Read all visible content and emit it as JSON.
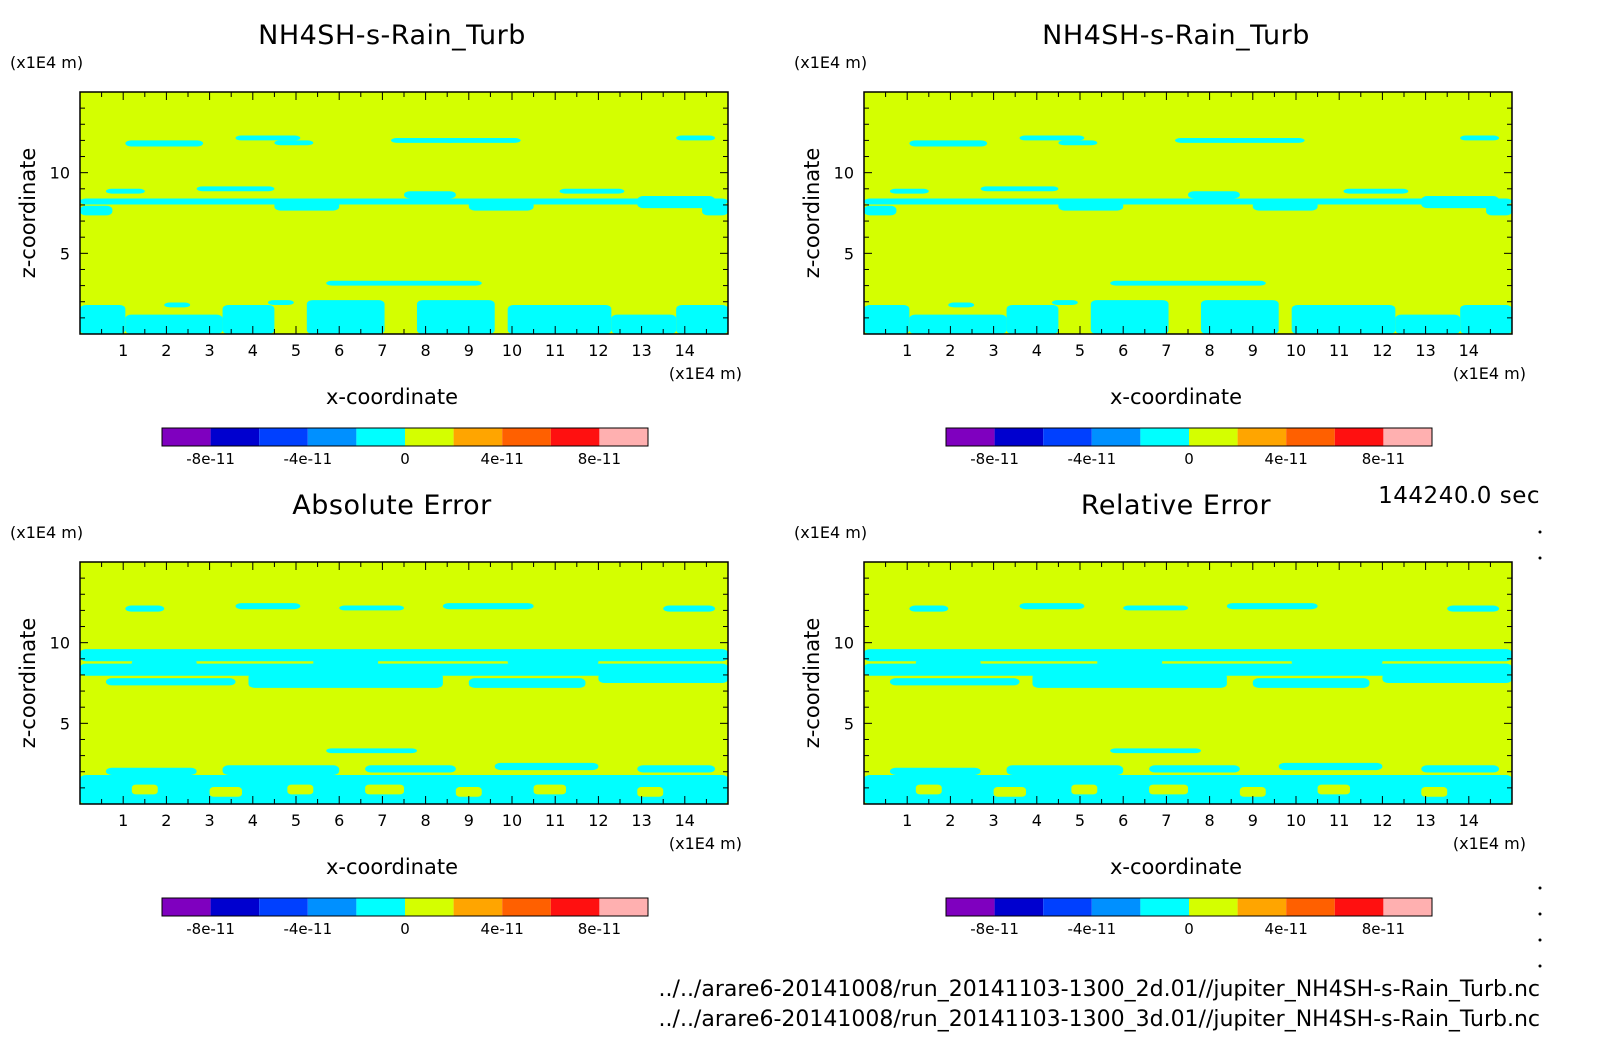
{
  "time_label": "144240.0 sec",
  "file_paths": [
    "../../arare6-20141008/run_20141103-1300_2d.01//jupiter_NH4SH-s-Rain_Turb.nc",
    "../../arare6-20141008/run_20141103-1300_3d.01//jupiter_NH4SH-s-Rain_Turb.nc"
  ],
  "colors": {
    "background_level": "#d4ff00",
    "contour_level": "#00ffff"
  },
  "colorbar": {
    "colors": [
      "#7f00bf",
      "#0000cf",
      "#0040ff",
      "#0090ff",
      "#00ffff",
      "#d4ff00",
      "#ffa500",
      "#ff6000",
      "#ff1010",
      "#ffb0b0"
    ],
    "tick_labels": [
      "-8e-11",
      "-4e-11",
      "0",
      "4e-11",
      "8e-11"
    ]
  },
  "chart_data": [
    {
      "type": "heatmap",
      "title": "NH4SH-s-Rain_Turb",
      "xlabel": "x-coordinate",
      "ylabel": "z-coordinate",
      "x_unit": "(x1E4 m)",
      "y_unit": "(x1E4 m)",
      "xlim": [
        0,
        15
      ],
      "ylim": [
        0,
        15
      ],
      "x_ticks": [
        "1",
        "2",
        "3",
        "4",
        "5",
        "6",
        "7",
        "8",
        "9",
        "10",
        "11",
        "12",
        "13",
        "14"
      ],
      "y_ticks": [
        "5",
        "10"
      ],
      "colorbar_range": [
        -1e-10,
        1e-10
      ]
    },
    {
      "type": "heatmap",
      "title": "NH4SH-s-Rain_Turb",
      "xlabel": "x-coordinate",
      "ylabel": "z-coordinate",
      "x_unit": "(x1E4 m)",
      "y_unit": "(x1E4 m)",
      "xlim": [
        0,
        15
      ],
      "ylim": [
        0,
        15
      ],
      "x_ticks": [
        "1",
        "2",
        "3",
        "4",
        "5",
        "6",
        "7",
        "8",
        "9",
        "10",
        "11",
        "12",
        "13",
        "14"
      ],
      "y_ticks": [
        "5",
        "10"
      ],
      "colorbar_range": [
        -1e-10,
        1e-10
      ]
    },
    {
      "type": "heatmap",
      "title": "Absolute Error",
      "xlabel": "x-coordinate",
      "ylabel": "z-coordinate",
      "x_unit": "(x1E4 m)",
      "y_unit": "(x1E4 m)",
      "xlim": [
        0,
        15
      ],
      "ylim": [
        0,
        15
      ],
      "x_ticks": [
        "1",
        "2",
        "3",
        "4",
        "5",
        "6",
        "7",
        "8",
        "9",
        "10",
        "11",
        "12",
        "13",
        "14"
      ],
      "y_ticks": [
        "5",
        "10"
      ],
      "colorbar_range": [
        -1e-10,
        1e-10
      ]
    },
    {
      "type": "heatmap",
      "title": "Relative Error",
      "xlabel": "x-coordinate",
      "ylabel": "z-coordinate",
      "x_unit": "(x1E4 m)",
      "y_unit": "(x1E4 m)",
      "xlim": [
        0,
        15
      ],
      "ylim": [
        0,
        15
      ],
      "x_ticks": [
        "1",
        "2",
        "3",
        "4",
        "5",
        "6",
        "7",
        "8",
        "9",
        "10",
        "11",
        "12",
        "13",
        "14"
      ],
      "y_ticks": [
        "5",
        "10"
      ],
      "colorbar_range": [
        -1e-10,
        1e-10
      ]
    }
  ]
}
